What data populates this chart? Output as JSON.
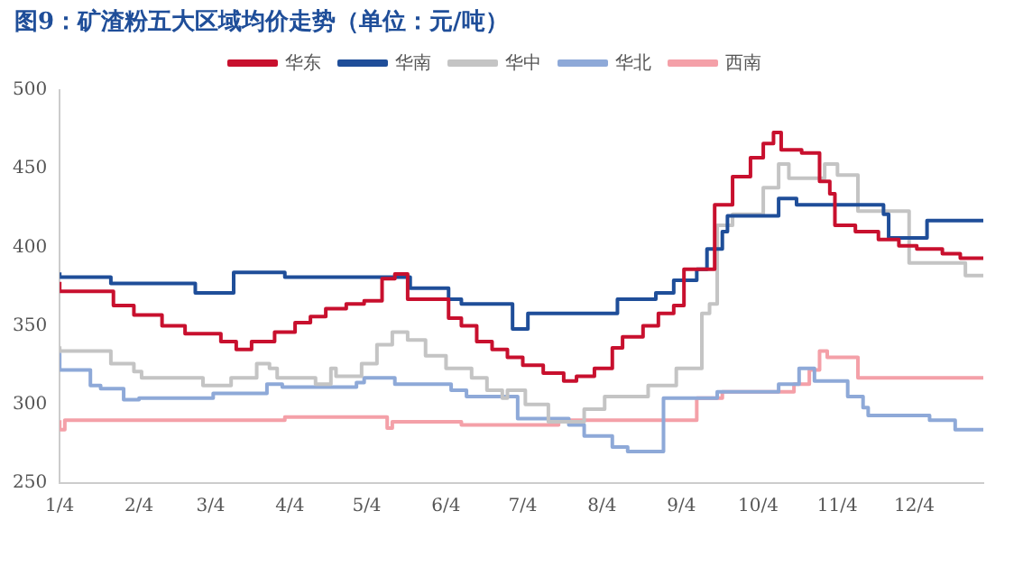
{
  "chart_data": {
    "type": "step",
    "title": "图9：矿渣粉五大区域均价走势（单位：元/吨）",
    "xlim": [
      "--01-04",
      "--12-31"
    ],
    "xticks": [
      {
        "value": "--01-04",
        "label": "1/4"
      },
      {
        "value": "--02-04",
        "label": "2/4"
      },
      {
        "value": "--03-04",
        "label": "3/4"
      },
      {
        "value": "--04-04",
        "label": "4/4"
      },
      {
        "value": "--05-04",
        "label": "5/4"
      },
      {
        "value": "--06-04",
        "label": "6/4"
      },
      {
        "value": "--07-04",
        "label": "7/4"
      },
      {
        "value": "--08-04",
        "label": "8/4"
      },
      {
        "value": "--09-04",
        "label": "9/4"
      },
      {
        "value": "--10-04",
        "label": "10/4"
      },
      {
        "value": "--11-04",
        "label": "11/4"
      },
      {
        "value": "--12-04",
        "label": "12/4"
      }
    ],
    "ylim": [
      250,
      500
    ],
    "yticks": [
      250,
      300,
      350,
      400,
      450,
      500
    ],
    "grid": false,
    "legend": "top",
    "marker": "none",
    "line_style": "solid",
    "series": [
      {
        "name": "华东",
        "color": "#c8102e",
        "x": [
          "--01-04",
          "--01-25",
          "--02-02",
          "--02-13",
          "--02-22",
          "--03-08",
          "--03-14",
          "--03-20",
          "--03-29",
          "--04-06",
          "--04-12",
          "--04-18",
          "--04-26",
          "--05-03",
          "--05-10",
          "--05-15",
          "--05-20",
          "--06-05",
          "--06-10",
          "--06-16",
          "--06-22",
          "--06-28",
          "--07-04",
          "--07-12",
          "--07-20",
          "--07-25",
          "--08-01",
          "--08-08",
          "--08-12",
          "--08-20",
          "--08-26",
          "--09-01",
          "--09-05",
          "--09-17",
          "--09-24",
          "--10-01",
          "--10-06",
          "--10-10",
          "--10-13",
          "--10-21",
          "--10-28",
          "--11-01",
          "--11-03",
          "--11-11",
          "--11-20",
          "--11-28",
          "--12-05",
          "--12-15",
          "--12-22",
          "--12-31"
        ],
        "values": [
          378,
          372,
          363,
          357,
          350,
          345,
          340,
          335,
          340,
          346,
          352,
          356,
          361,
          364,
          366,
          380,
          383,
          367,
          355,
          350,
          340,
          335,
          330,
          325,
          320,
          315,
          318,
          323,
          336,
          343,
          350,
          358,
          363,
          386,
          427,
          445,
          457,
          466,
          473,
          462,
          460,
          442,
          434,
          414,
          410,
          405,
          401,
          399,
          396,
          393
        ]
      },
      {
        "name": "华南",
        "color": "#1f4e99",
        "x": [
          "--01-04",
          "--01-24",
          "--02-26",
          "--03-13",
          "--04-02",
          "--05-21",
          "--06-05",
          "--06-10",
          "--06-30",
          "--07-06",
          "--08-10",
          "--08-25",
          "--09-01",
          "--09-10",
          "--09-14",
          "--09-20",
          "--09-22",
          "--10-12",
          "--10-19",
          "--11-22",
          "--11-24",
          "--12-09",
          "--12-16",
          "--12-31"
        ],
        "values": [
          384,
          381,
          377,
          371,
          384,
          381,
          374,
          367,
          364,
          348,
          358,
          367,
          371,
          379,
          386,
          399,
          410,
          420,
          431,
          427,
          421,
          406,
          417,
          417
        ]
      },
      {
        "name": "华中",
        "color": "#c4c4c4",
        "x": [
          "--01-04",
          "--01-24",
          "--02-02",
          "--02-05",
          "--03-01",
          "--03-12",
          "--03-22",
          "--03-27",
          "--03-30",
          "--04-14",
          "--04-20",
          "--04-22",
          "--05-02",
          "--05-08",
          "--05-14",
          "--05-20",
          "--05-27",
          "--06-04",
          "--06-14",
          "--06-20",
          "--06-26",
          "--06-28",
          "--07-05",
          "--07-14",
          "--07-28",
          "--08-05",
          "--08-22",
          "--09-02",
          "--09-12",
          "--09-15",
          "--09-18",
          "--09-24",
          "--10-06",
          "--10-12",
          "--10-16",
          "--10-30",
          "--11-04",
          "--11-12",
          "--12-02",
          "--12-24",
          "--12-31"
        ],
        "values": [
          337,
          334,
          326,
          321,
          317,
          312,
          317,
          326,
          323,
          317,
          313,
          323,
          318,
          326,
          338,
          346,
          341,
          331,
          323,
          317,
          309,
          304,
          309,
          300,
          289,
          297,
          305,
          312,
          323,
          358,
          364,
          414,
          421,
          438,
          453,
          444,
          453,
          446,
          423,
          390,
          382
        ]
      },
      {
        "name": "华北",
        "color": "#8ea9d8",
        "x": [
          "--01-04",
          "--01-16",
          "--01-20",
          "--01-29",
          "--02-04",
          "--03-05",
          "--03-26",
          "--04-01",
          "--04-30",
          "--05-03",
          "--05-15",
          "--06-06",
          "--06-12",
          "--07-02",
          "--07-22",
          "--07-28",
          "--08-08",
          "--08-14",
          "--08-28",
          "--09-18",
          "--10-12",
          "--10-20",
          "--10-26",
          "--11-08",
          "--11-14",
          "--11-16",
          "--12-10",
          "--12-20",
          "--12-31"
        ],
        "values": [
          333,
          322,
          312,
          310,
          303,
          304,
          307,
          313,
          311,
          314,
          317,
          313,
          309,
          305,
          291,
          287,
          280,
          273,
          270,
          304,
          308,
          313,
          323,
          315,
          305,
          298,
          293,
          290,
          284
        ]
      },
      {
        "name": "西南",
        "color": "#f4a0a8",
        "x": [
          "--01-04",
          "--01-06",
          "--04-02",
          "--05-12",
          "--05-14",
          "--06-10",
          "--07-18",
          "--09-10",
          "--09-20",
          "--10-18",
          "--10-24",
          "--10-28",
          "--10-31",
          "--11-12",
          "--12-16",
          "--12-31"
        ],
        "values": [
          290,
          284,
          290,
          292,
          285,
          289,
          287,
          290,
          304,
          308,
          313,
          322,
          334,
          330,
          317,
          317
        ]
      }
    ]
  }
}
